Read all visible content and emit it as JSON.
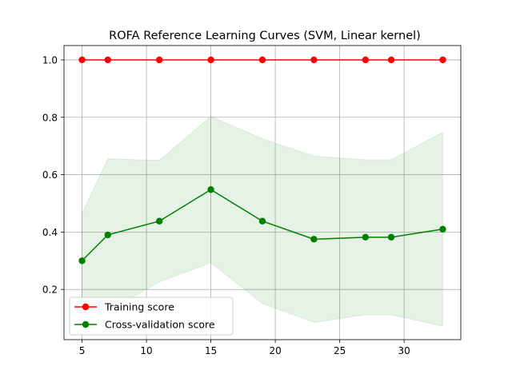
{
  "chart_data": {
    "type": "line",
    "title": "ROFA Reference Learning Curves (SVM, Linear kernel)",
    "xlabel": "",
    "ylabel": "",
    "xlim": [
      3.6,
      34.4
    ],
    "ylim": [
      0.025,
      1.05
    ],
    "x_ticks": [
      5,
      10,
      15,
      20,
      25,
      30
    ],
    "y_ticks": [
      0.2,
      0.4,
      0.6,
      0.8,
      1.0
    ],
    "x_tick_labels": [
      "5",
      "10",
      "15",
      "20",
      "25",
      "30"
    ],
    "y_tick_labels": [
      "0.2",
      "0.4",
      "0.6",
      "0.8",
      "1.0"
    ],
    "grid": true,
    "legend_position": "lower-left",
    "x": [
      5,
      7,
      11,
      15,
      19,
      23,
      27,
      29,
      33
    ],
    "series": [
      {
        "name": "Training score",
        "color": "#ff0000",
        "values": [
          1.0,
          1.0,
          1.0,
          1.0,
          1.0,
          1.0,
          1.0,
          1.0,
          1.0
        ],
        "band_upper": [
          1.0,
          1.0,
          1.0,
          1.0,
          1.0,
          1.0,
          1.0,
          1.0,
          1.0
        ],
        "band_lower": [
          1.0,
          1.0,
          1.0,
          1.0,
          1.0,
          1.0,
          1.0,
          1.0,
          1.0
        ]
      },
      {
        "name": "Cross-validation score",
        "color": "#008000",
        "values": [
          0.3,
          0.39,
          0.438,
          0.548,
          0.438,
          0.375,
          0.382,
          0.382,
          0.41
        ],
        "band_upper": [
          0.465,
          0.655,
          0.65,
          0.803,
          0.725,
          0.665,
          0.652,
          0.652,
          0.748
        ],
        "band_lower": [
          0.135,
          0.125,
          0.226,
          0.293,
          0.151,
          0.085,
          0.112,
          0.112,
          0.072
        ]
      }
    ]
  }
}
